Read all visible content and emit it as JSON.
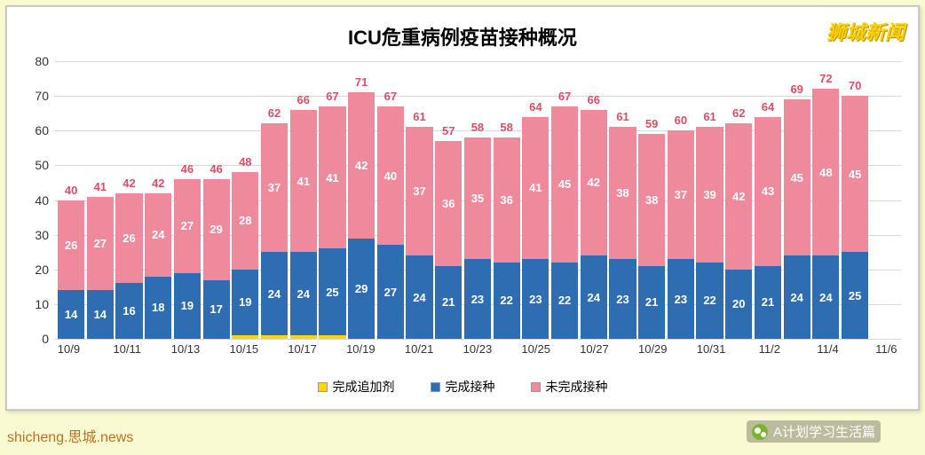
{
  "chart": {
    "type": "stacked-bar",
    "title": "ICU危重病例疫苗接种概况",
    "watermark_tr": "狮城新闻",
    "yaxis": {
      "min": 0,
      "max": 80,
      "step": 10,
      "ticks": [
        0,
        10,
        20,
        30,
        40,
        50,
        60,
        70,
        80
      ]
    },
    "xticks_every_other_from_zero": true,
    "categories": [
      "10/9",
      "10/10",
      "10/11",
      "10/12",
      "10/13",
      "10/14",
      "10/15",
      "10/16",
      "10/17",
      "10/18",
      "10/19",
      "10/20",
      "10/21",
      "10/22",
      "10/23",
      "10/24",
      "10/25",
      "10/26",
      "10/27",
      "10/28",
      "10/29",
      "10/30",
      "10/31",
      "11/1",
      "11/2",
      "11/3",
      "11/4",
      "11/5",
      "11/6"
    ],
    "totals": [
      40,
      41,
      42,
      42,
      46,
      46,
      48,
      62,
      66,
      67,
      71,
      67,
      61,
      57,
      58,
      58,
      64,
      67,
      66,
      61,
      59,
      60,
      61,
      62,
      64,
      69,
      72,
      70,
      null
    ],
    "series": [
      {
        "key": "booster",
        "label": "完成追加剂",
        "color": "#ffd700",
        "values": [
          0,
          0,
          0,
          0,
          0,
          0,
          1,
          1,
          1,
          1,
          0,
          0,
          0,
          0,
          0,
          0,
          0,
          0,
          0,
          0,
          0,
          0,
          0,
          0,
          0,
          0,
          0,
          0,
          0
        ],
        "value_labels": [
          null,
          null,
          null,
          null,
          null,
          null,
          "1",
          "1",
          "1",
          "1",
          null,
          null,
          null,
          null,
          null,
          null,
          null,
          null,
          null,
          null,
          null,
          null,
          null,
          null,
          null,
          null,
          null,
          null,
          null
        ]
      },
      {
        "key": "vaccinated",
        "label": "完成接种",
        "color": "#2f6db3",
        "values": [
          14,
          14,
          16,
          18,
          19,
          17,
          19,
          24,
          24,
          25,
          29,
          27,
          24,
          21,
          23,
          22,
          23,
          22,
          24,
          23,
          21,
          23,
          22,
          20,
          21,
          24,
          24,
          25,
          0
        ],
        "value_labels": [
          "14",
          "14",
          "16",
          "18",
          "19",
          "17",
          "19",
          "24",
          "24",
          "25",
          "29",
          "27",
          "24",
          "21",
          "23",
          "22",
          "23",
          "22",
          "24",
          "23",
          "21",
          "23",
          "22",
          "20",
          "21",
          "24",
          "24",
          "25",
          null
        ]
      },
      {
        "key": "unvaccinated",
        "label": "未完成接种",
        "color": "#ef8a9d",
        "values": [
          26,
          27,
          26,
          24,
          27,
          29,
          28,
          37,
          41,
          41,
          42,
          40,
          37,
          36,
          35,
          36,
          41,
          45,
          42,
          38,
          38,
          37,
          39,
          42,
          43,
          45,
          48,
          45,
          0
        ],
        "value_labels": [
          "26",
          "27",
          "26",
          "24",
          "27",
          "29",
          "28",
          "37",
          "41",
          "41",
          "42",
          "40",
          "37",
          "36",
          "35",
          "36",
          "41",
          "45",
          "42",
          "38",
          "38",
          "37",
          "39",
          "42",
          "43",
          "45",
          "48",
          "45",
          null
        ]
      }
    ],
    "total_label_color": "#dc4e66",
    "background_color": "#ffffff",
    "page_background": "#fafad2",
    "grid_color": "#d8d8d8"
  },
  "footer": {
    "left_text": "shicheng.思城.news",
    "right_text": "A计划学习生活篇"
  }
}
